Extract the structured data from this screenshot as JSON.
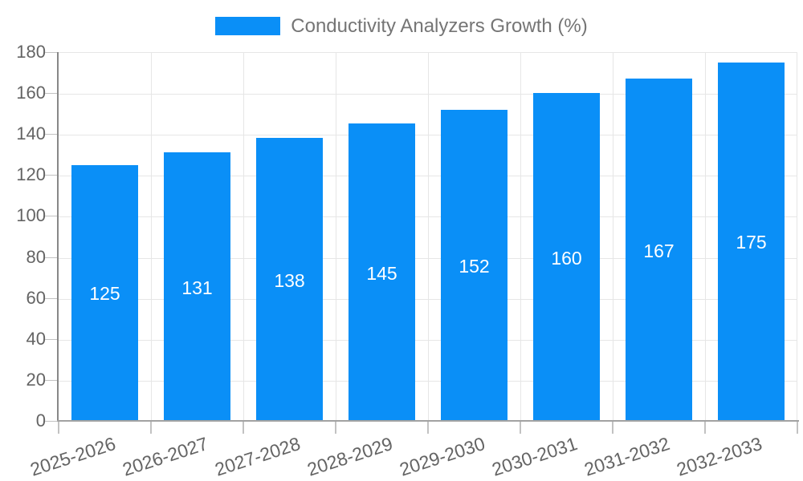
{
  "chart_data": {
    "type": "bar",
    "title": "Conductivity Analyzers Growth (%)",
    "categories": [
      "2025-2026",
      "2026-2027",
      "2027-2028",
      "2028-2029",
      "2029-2030",
      "2030-2031",
      "2031-2032",
      "2032-2033"
    ],
    "values": [
      125,
      131,
      138,
      145,
      152,
      160,
      167,
      175
    ],
    "xlabel": "",
    "ylabel": "",
    "ylim": [
      0,
      180
    ],
    "yticks": [
      0,
      20,
      40,
      60,
      80,
      100,
      120,
      140,
      160,
      180
    ],
    "grid": true,
    "legend_position": "top",
    "bar_color": "#0a8ff7",
    "value_label_color": "#ffffff",
    "axis_label_color": "#646464",
    "legend_text_color": "#757575",
    "gridline_color": "#e6e6e6",
    "y_axis_line_color": "#878787",
    "x_axis_line_color": "#a2a2a2",
    "tick_mark_color": "#c2c2c2"
  }
}
